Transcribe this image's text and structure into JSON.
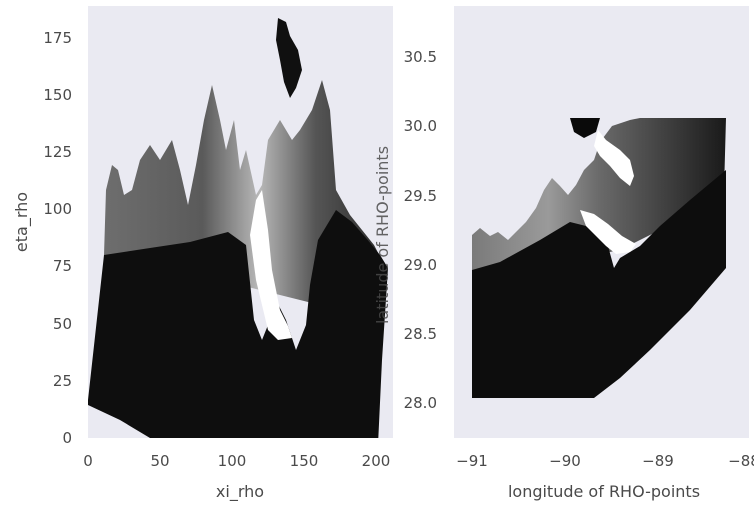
{
  "chart_data": [
    {
      "type": "heatmap",
      "title": "",
      "xlabel": "xi_rho",
      "ylabel": "eta_rho",
      "xlim": [
        0,
        206
      ],
      "ylim": [
        0,
        188
      ],
      "xticks": [
        0,
        50,
        100,
        150,
        200
      ],
      "yticks": [
        0,
        25,
        50,
        75,
        100,
        125,
        150,
        175
      ],
      "grid": false,
      "colormap": "gray",
      "background": "#eaeaf2"
    },
    {
      "type": "heatmap",
      "title": "",
      "xlabel": "longitude of RHO-points",
      "ylabel": "latitude of RHO-points",
      "xlim": [
        -91.1,
        -88.0
      ],
      "ylim": [
        27.72,
        30.85
      ],
      "xticks": [
        -91,
        -90,
        -89,
        -88
      ],
      "yticks": [
        28.0,
        28.5,
        29.0,
        29.5,
        30.0,
        30.5
      ],
      "grid": false,
      "colormap": "gray",
      "background": "#eaeaf2"
    }
  ]
}
